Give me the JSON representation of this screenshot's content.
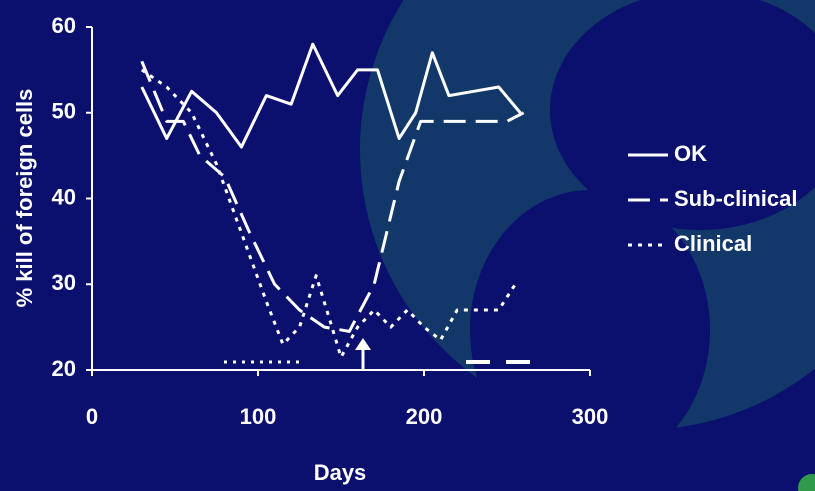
{
  "chart_data": {
    "type": "line",
    "y_title": "% kill of foreign cells",
    "x_title": "Days",
    "xlim": [
      0,
      300
    ],
    "ylim": [
      20,
      60
    ],
    "xticks": [
      0,
      100,
      200,
      300
    ],
    "yticks": [
      20,
      30,
      40,
      50,
      60
    ],
    "legend": "right",
    "series": [
      {
        "name": "OK",
        "color": "#ffffff",
        "dash": "solid",
        "x": [
          30,
          45,
          60,
          75,
          90,
          105,
          120,
          133,
          148,
          160,
          172,
          185,
          195,
          205,
          215,
          230,
          245,
          258
        ],
        "values": [
          53,
          47,
          52.5,
          50,
          46,
          52,
          51,
          58,
          52,
          55,
          55,
          47,
          50,
          57,
          52,
          52.5,
          53,
          50
        ]
      },
      {
        "name": "Sub-clinical",
        "color": "#ffffff",
        "dash": "dashed",
        "x": [
          30,
          45,
          55,
          65,
          80,
          95,
          110,
          125,
          140,
          155,
          170,
          185,
          198,
          210,
          230,
          250,
          260
        ],
        "values": [
          56,
          49,
          49,
          45,
          42.5,
          36,
          30,
          27,
          25,
          24.5,
          30,
          42,
          49,
          49,
          49,
          49,
          50
        ]
      },
      {
        "name": "Clinical",
        "color": "#ffffff",
        "dash": "dotted",
        "x": [
          30,
          45,
          60,
          75,
          90,
          105,
          115,
          125,
          135,
          143,
          150,
          160,
          170,
          180,
          190,
          200,
          210,
          220,
          235,
          245,
          255
        ],
        "values": [
          55,
          53,
          50,
          44,
          36,
          28,
          23,
          25,
          31,
          26,
          21.5,
          25,
          27,
          25,
          27,
          25,
          23.5,
          27,
          27,
          27,
          30
        ]
      }
    ]
  }
}
